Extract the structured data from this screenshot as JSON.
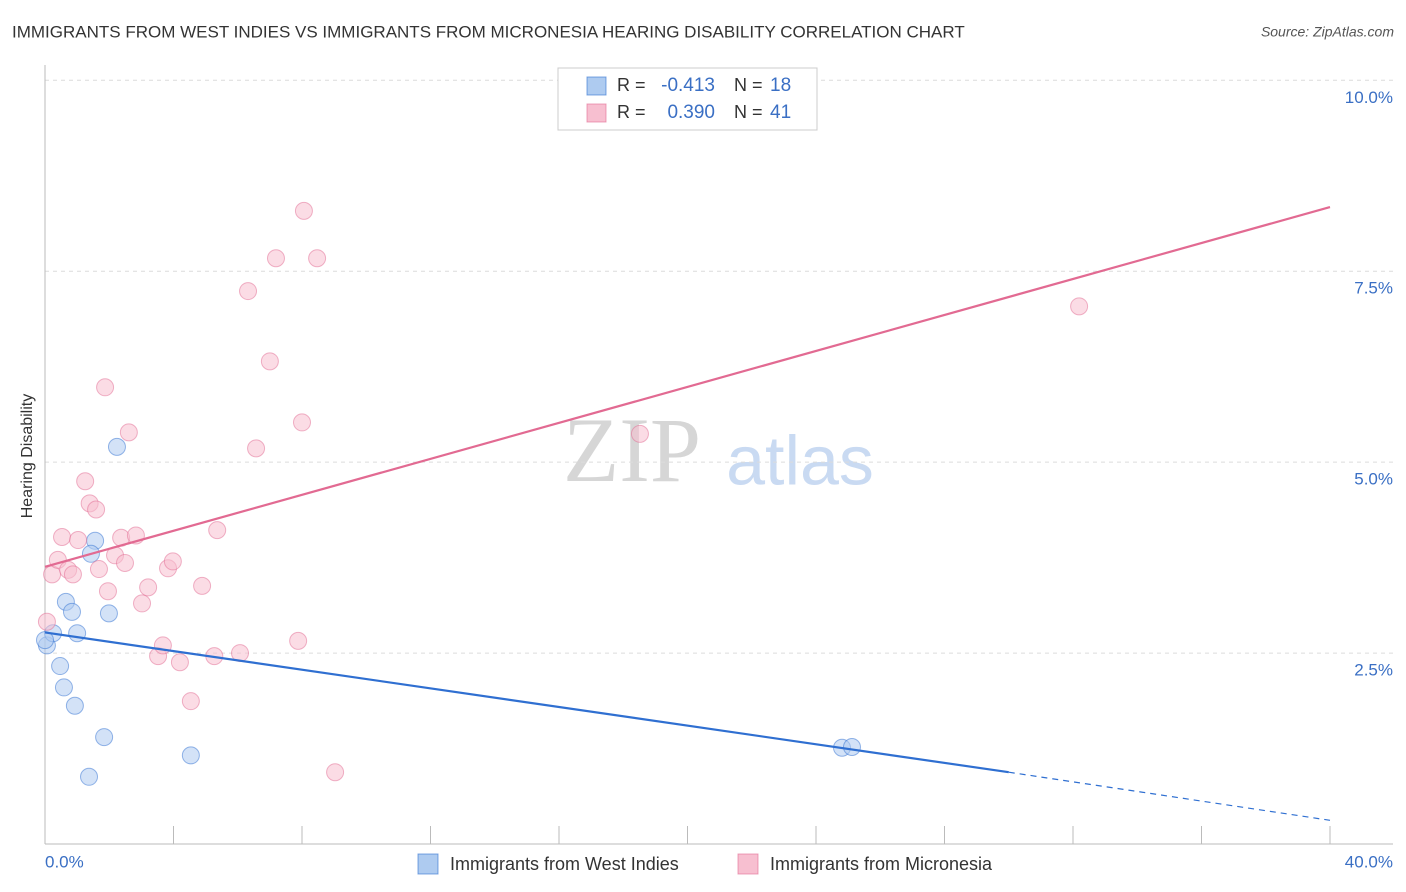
{
  "chart_data": {
    "type": "scatter",
    "title": "IMMIGRANTS FROM WEST INDIES VS IMMIGRANTS FROM MICRONESIA HEARING DISABILITY CORRELATION CHART",
    "source": "Source: ZipAtlas.com",
    "ylabel": "Hearing Disability",
    "watermark": [
      "ZIP",
      "atlas"
    ],
    "r_label": "R =",
    "n_label": "N =",
    "xlim": [
      0,
      40
    ],
    "ylim": [
      0,
      10.2
    ],
    "xticks": [
      {
        "value": 0,
        "label": "0.0%"
      },
      {
        "value": 40,
        "label": "40.0%"
      }
    ],
    "xminor_ticks": [
      4,
      8,
      12,
      16,
      20,
      24,
      28,
      32,
      36
    ],
    "yticks": [
      {
        "value": 2.5,
        "label": "2.5%"
      },
      {
        "value": 5,
        "label": "5.0%"
      },
      {
        "value": 7.5,
        "label": "7.5%"
      },
      {
        "value": 10,
        "label": "10.0%"
      }
    ],
    "grid": true,
    "series": [
      {
        "name": "Immigrants from West Indies",
        "color": "#2f6fd1",
        "fill": "#aecbf0",
        "r": -0.413,
        "n": 18,
        "x": [
          0.06,
          0.25,
          0.47,
          0.59,
          0.65,
          0.84,
          0.93,
          1.0,
          1.37,
          1.56,
          1.43,
          1.84,
          1.99,
          2.24,
          4.54,
          24.81,
          25.12,
          0
        ],
        "values": [
          2.6,
          2.76,
          2.33,
          2.05,
          3.17,
          3.04,
          1.81,
          2.76,
          0.88,
          3.97,
          3.8,
          1.4,
          3.02,
          5.2,
          1.16,
          1.26,
          1.27,
          2.67
        ],
        "trend_x": [
          0,
          30,
          40
        ],
        "trend_y": [
          2.77,
          0.94,
          0.31
        ]
      },
      {
        "name": "Immigrants from Micronesia",
        "color": "#e26a92",
        "fill": "#f7bfd0",
        "r": 0.39,
        "r_label": "0.390",
        "n": 41,
        "x": [
          0.06,
          0.22,
          0.4,
          0.53,
          0.72,
          0.87,
          1.03,
          1.25,
          1.39,
          1.59,
          1.68,
          1.87,
          1.96,
          2.18,
          2.37,
          2.49,
          2.61,
          2.83,
          3.02,
          3.21,
          3.52,
          3.67,
          3.83,
          3.98,
          4.2,
          4.54,
          4.89,
          5.27,
          5.36,
          6.07,
          6.32,
          6.57,
          7.0,
          7.19,
          7.88,
          8.0,
          8.06,
          8.47,
          9.03,
          18.52,
          32.19
        ],
        "values": [
          2.91,
          3.53,
          3.72,
          4.02,
          3.59,
          3.53,
          3.98,
          4.75,
          4.46,
          4.38,
          3.6,
          5.98,
          3.31,
          3.78,
          4.01,
          3.68,
          5.39,
          4.04,
          3.15,
          3.36,
          2.46,
          2.6,
          3.61,
          3.7,
          2.38,
          1.87,
          3.38,
          2.46,
          4.11,
          2.5,
          7.24,
          5.18,
          6.32,
          7.67,
          2.66,
          5.52,
          8.29,
          7.67,
          0.94,
          5.37,
          7.04
        ],
        "trend_x": [
          0,
          40
        ],
        "trend_y": [
          3.63,
          8.34
        ]
      }
    ]
  }
}
